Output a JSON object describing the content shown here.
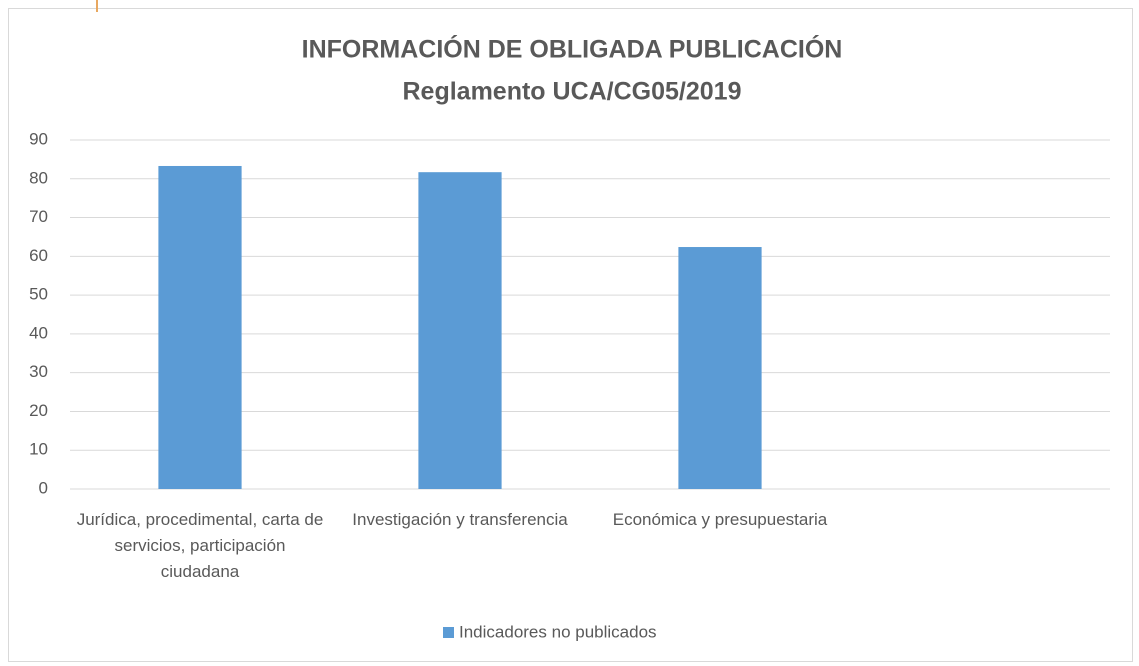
{
  "chart_data": {
    "type": "bar",
    "title": "INFORMACIÓN DE OBLIGADA PUBLICACIÓN",
    "subtitle": "Reglamento UCA/CG05/2019",
    "categories": [
      "Jurídica, procedimental, carta de servicios, participación ciudadana",
      "Investigación y transferencia",
      "Económica y presupuestaria",
      null
    ],
    "series": [
      {
        "name": "Indicadores no publicados",
        "color": "#5b9bd5",
        "values": [
          83.3,
          81.7,
          62.4,
          null
        ]
      }
    ],
    "ylim": [
      0,
      90
    ],
    "yticks": [
      0,
      10,
      20,
      30,
      40,
      50,
      60,
      70,
      80,
      90
    ],
    "grid": true,
    "legend": "bottom"
  }
}
